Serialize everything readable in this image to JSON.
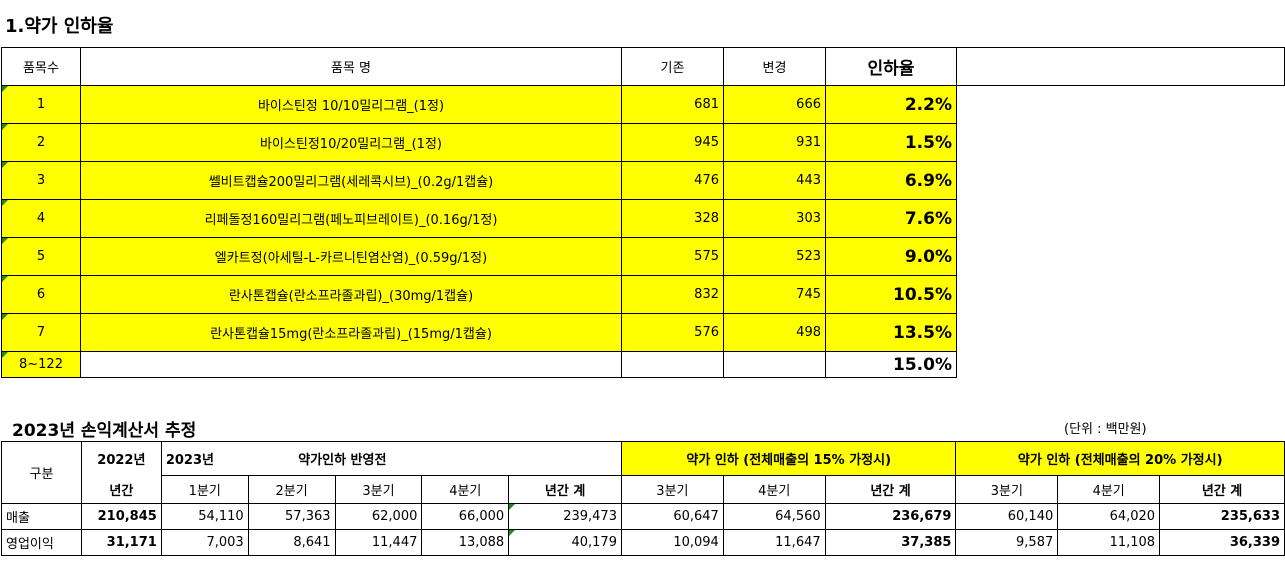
{
  "section1": {
    "title": "1.약가 인하율",
    "headers": {
      "no": "품목수",
      "name": "품목 명",
      "before": "기존",
      "after": "변경",
      "rate": "인하율"
    },
    "rows": [
      {
        "no": "1",
        "name": "바이스틴정 10/10밀리그램_(1정)",
        "before": "681",
        "after": "666",
        "rate": "2.2%"
      },
      {
        "no": "2",
        "name": "바이스틴정10/20밀리그램_(1정)",
        "before": "945",
        "after": "931",
        "rate": "1.5%"
      },
      {
        "no": "3",
        "name": "쎌비트캡슐200밀리그램(세레콕시브)_(0.2g/1캡슐)",
        "before": "476",
        "after": "443",
        "rate": "6.9%"
      },
      {
        "no": "4",
        "name": "리페돌정160밀리그램(페노피브레이트)_(0.16g/1정)",
        "before": "328",
        "after": "303",
        "rate": "7.6%"
      },
      {
        "no": "5",
        "name": "엘카트정(아세틸-L-카르니틴염산염)_(0.59g/1정)",
        "before": "575",
        "after": "523",
        "rate": "9.0%"
      },
      {
        "no": "6",
        "name": "란사톤캡슐(란소프라졸과립)_(30mg/1캡슐)",
        "before": "832",
        "after": "745",
        "rate": "10.5%"
      },
      {
        "no": "7",
        "name": "란사톤캡슐15mg(란소프라졸과립)_(15mg/1캡슐)",
        "before": "576",
        "after": "498",
        "rate": "13.5%"
      }
    ],
    "last": {
      "no": "8~122",
      "rate": "15.0%"
    }
  },
  "section2": {
    "title": "2023년 손익계산서 추정",
    "unit": "(단위 : 백만원)",
    "header": {
      "category": "구분",
      "y2022": "2022년",
      "annual": "년간",
      "y2023": "2023년",
      "before_label": "약가인하 반영전",
      "scen15": "약가 인하 (전체매출의 15% 가정시)",
      "scen20": "약가 인하 (전체매출의 20% 가정시)",
      "q1": "1분기",
      "q2": "2분기",
      "q3": "3분기",
      "q4": "4분기",
      "total": "년간 계"
    },
    "rows": [
      {
        "label": "매출",
        "y2022": "210,845",
        "q1": "54,110",
        "q2": "57,363",
        "q3": "62,000",
        "q4": "66,000",
        "total": "239,473",
        "s15q3": "60,647",
        "s15q4": "64,560",
        "s15total": "236,679",
        "s20q3": "60,140",
        "s20q4": "64,020",
        "s20total": "235,633"
      },
      {
        "label": "영업이익",
        "y2022": "31,171",
        "q1": "7,003",
        "q2": "8,641",
        "q3": "11,447",
        "q4": "13,088",
        "total": "40,179",
        "s15q3": "10,094",
        "s15q4": "11,647",
        "s15total": "37,385",
        "s20q3": "9,587",
        "s20q4": "11,108",
        "s20total": "36,339"
      }
    ]
  }
}
